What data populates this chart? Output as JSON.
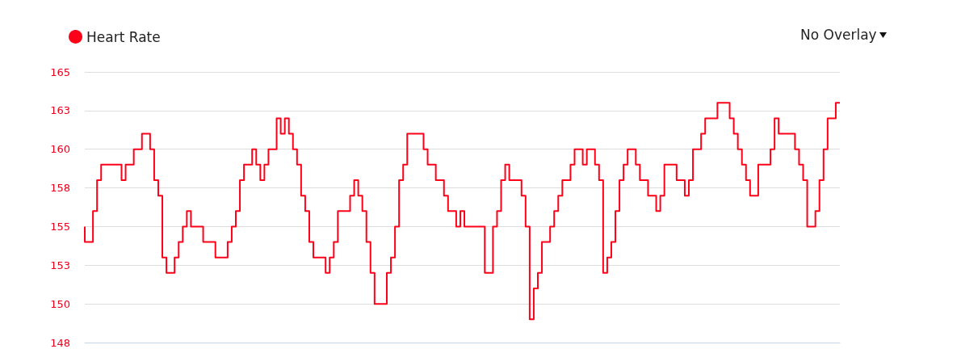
{
  "chart_data": {
    "type": "step",
    "categories": [
      null,
      null,
      null,
      null,
      null,
      null,
      null,
      null,
      null,
      null,
      null,
      null,
      null,
      null,
      null,
      null,
      null,
      null,
      null,
      null,
      null,
      null,
      null,
      null,
      null,
      null,
      null,
      null,
      null,
      null,
      null,
      null,
      null,
      null,
      null,
      null,
      null,
      null,
      null,
      null,
      null,
      null,
      null,
      null,
      null,
      null,
      null,
      null,
      null,
      null,
      null,
      null,
      null,
      null,
      null,
      null,
      null,
      null,
      null,
      null,
      null,
      null,
      null,
      null,
      null,
      null,
      null,
      null,
      null,
      null,
      null,
      null,
      null,
      null,
      null,
      null,
      null,
      null,
      null,
      null,
      null,
      null,
      null,
      null,
      null,
      null,
      null,
      null,
      null,
      null,
      null,
      null,
      null,
      null,
      null,
      null,
      null,
      null,
      null,
      null,
      null,
      null,
      null,
      null,
      null,
      null,
      null,
      null,
      null,
      null,
      null,
      null,
      null,
      null,
      null,
      null,
      null,
      null,
      null,
      null,
      null,
      null,
      null,
      null,
      null,
      null,
      null,
      null,
      null,
      null,
      null,
      null,
      null,
      null,
      null,
      null,
      null,
      null,
      null,
      null,
      null,
      null,
      null,
      null,
      null,
      null,
      null,
      null,
      null,
      null,
      null,
      null,
      null,
      null,
      null,
      null,
      null,
      null,
      null,
      null,
      null,
      null,
      null,
      null,
      null,
      null,
      null,
      null,
      null,
      null,
      null,
      null,
      null,
      null,
      null,
      null,
      null,
      null,
      null,
      null,
      null,
      null,
      null,
      null,
      null,
      null
    ],
    "series": [
      {
        "name": "Heart Rate",
        "color": "#ff0019",
        "values": [
          155,
          154,
          154,
          156,
          158,
          159,
          159,
          159,
          159,
          159,
          158,
          159,
          159,
          160,
          160,
          161,
          161,
          160,
          158,
          157,
          153,
          152,
          152,
          153,
          154,
          155,
          156,
          155,
          155,
          155,
          154,
          154,
          154,
          153,
          153,
          153,
          154,
          155,
          156,
          158,
          159,
          159,
          160,
          159,
          158,
          159,
          160,
          160,
          162,
          161,
          162,
          161,
          160,
          159,
          157,
          156,
          154,
          153,
          153,
          153,
          152,
          153,
          154,
          156,
          156,
          156,
          157,
          158,
          157,
          156,
          154,
          152,
          150,
          150,
          150,
          152,
          153,
          155,
          158,
          159,
          161,
          161,
          161,
          161,
          160,
          159,
          159,
          158,
          158,
          157,
          156,
          156,
          155,
          156,
          155,
          155,
          155,
          155,
          155,
          152,
          152,
          155,
          156,
          158,
          159,
          158,
          158,
          158,
          157,
          155,
          149,
          151,
          152,
          154,
          154,
          155,
          156,
          157,
          158,
          158,
          159,
          160,
          160,
          159,
          160,
          160,
          159,
          158,
          152,
          153,
          154,
          156,
          158,
          159,
          160,
          160,
          159,
          158,
          158,
          157,
          157,
          156,
          157,
          159,
          159,
          159,
          158,
          158,
          157,
          158,
          160,
          160,
          161,
          162,
          162,
          162,
          163,
          163,
          163,
          162,
          161,
          160,
          159,
          158,
          157,
          157,
          159,
          159,
          159,
          160,
          162,
          161,
          161,
          161,
          161,
          160,
          159,
          158,
          155,
          155,
          156,
          158,
          160,
          162,
          162,
          163
        ]
      }
    ],
    "ylim": [
      147.5,
      165
    ],
    "yticks": [
      {
        "value": 147.5,
        "label": "148"
      },
      150,
      {
        "value": 152.5,
        "label": "153"
      },
      155,
      {
        "value": 157.5,
        "label": "158"
      },
      160,
      {
        "value": 162.5,
        "label": "163"
      },
      165
    ],
    "grid": "y",
    "legend": "top left",
    "marker": "none",
    "annotations": [
      "No Overlay"
    ]
  }
}
